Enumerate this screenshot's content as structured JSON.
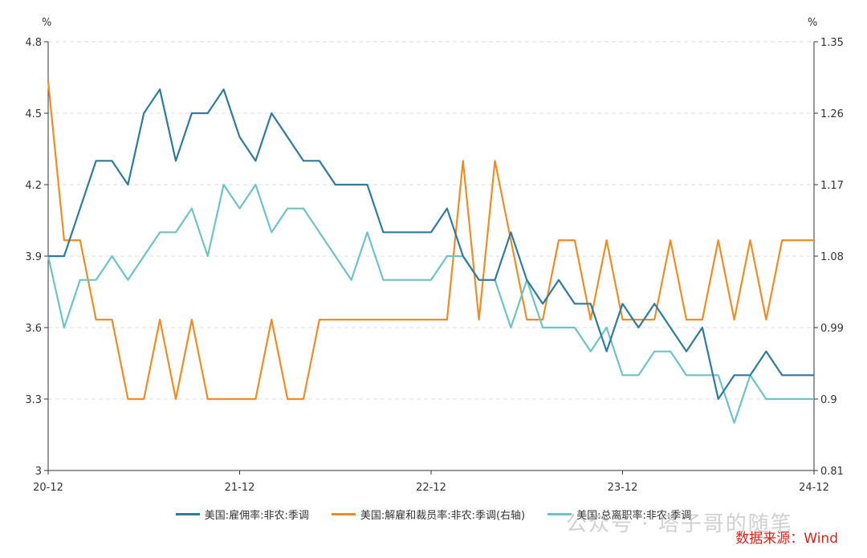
{
  "chart_data": {
    "type": "line",
    "left_axis": {
      "unit": "%",
      "ticks": [
        "3",
        "3.3",
        "3.6",
        "3.9",
        "4.2",
        "4.5",
        "4.8"
      ],
      "ylim": [
        3,
        4.8
      ]
    },
    "right_axis": {
      "unit": "%",
      "ticks": [
        "0.81",
        "0.9",
        "0.99",
        "1.08",
        "1.17",
        "1.26",
        "1.35"
      ],
      "ylim": [
        0.81,
        1.35
      ]
    },
    "x_ticks": [
      "20-12",
      "21-12",
      "22-12",
      "23-12",
      "24-12"
    ],
    "x_count": 49,
    "grid": "horizontal dashed",
    "series": [
      {
        "name": "美国:雇佣率:非农:季调",
        "axis": "left",
        "color": "#2e7aa1",
        "values": [
          3.9,
          3.9,
          4.1,
          4.3,
          4.3,
          4.2,
          4.5,
          4.6,
          4.3,
          4.5,
          4.5,
          4.6,
          4.4,
          4.3,
          4.5,
          4.4,
          4.3,
          4.3,
          4.2,
          4.2,
          4.2,
          4.0,
          4.0,
          4.0,
          4.0,
          4.1,
          3.9,
          3.8,
          3.8,
          4.0,
          3.8,
          3.7,
          3.8,
          3.7,
          3.7,
          3.5,
          3.7,
          3.6,
          3.7,
          3.6,
          3.5,
          3.6,
          3.3,
          3.4,
          3.4,
          3.5,
          3.4,
          3.4,
          3.4
        ]
      },
      {
        "name": "美国:解雇和裁员率:非农:季调(右轴)",
        "axis": "right",
        "color": "#f08c24",
        "values": [
          1.3,
          1.1,
          1.1,
          1.0,
          1.0,
          0.9,
          0.9,
          1.0,
          0.9,
          1.0,
          0.9,
          0.9,
          0.9,
          0.9,
          1.0,
          0.9,
          0.9,
          1.0,
          1.0,
          1.0,
          1.0,
          1.0,
          1.0,
          1.0,
          1.0,
          1.0,
          1.2,
          1.0,
          1.2,
          1.1,
          1.0,
          1.0,
          1.1,
          1.1,
          1.0,
          1.1,
          1.0,
          1.0,
          1.0,
          1.1,
          1.0,
          1.0,
          1.1,
          1.0,
          1.1,
          1.0,
          1.1,
          1.1,
          1.1
        ]
      },
      {
        "name": "美国:总离职率:非农:季调",
        "axis": "left",
        "color": "#6cc4c4",
        "values": [
          3.9,
          3.6,
          3.8,
          3.8,
          3.9,
          3.8,
          3.9,
          4.0,
          4.0,
          4.1,
          3.9,
          4.2,
          4.1,
          4.2,
          4.0,
          4.1,
          4.1,
          4.0,
          3.9,
          3.8,
          4.0,
          3.8,
          3.8,
          3.8,
          3.8,
          3.9,
          3.9,
          3.8,
          3.8,
          3.6,
          3.8,
          3.6,
          3.6,
          3.6,
          3.5,
          3.6,
          3.4,
          3.4,
          3.5,
          3.5,
          3.4,
          3.4,
          3.4,
          3.2,
          3.4,
          3.3,
          3.3,
          3.3,
          3.3
        ]
      }
    ]
  },
  "watermark": "公众号 · 塔子哥的随笔",
  "source": "数据来源：Wind"
}
